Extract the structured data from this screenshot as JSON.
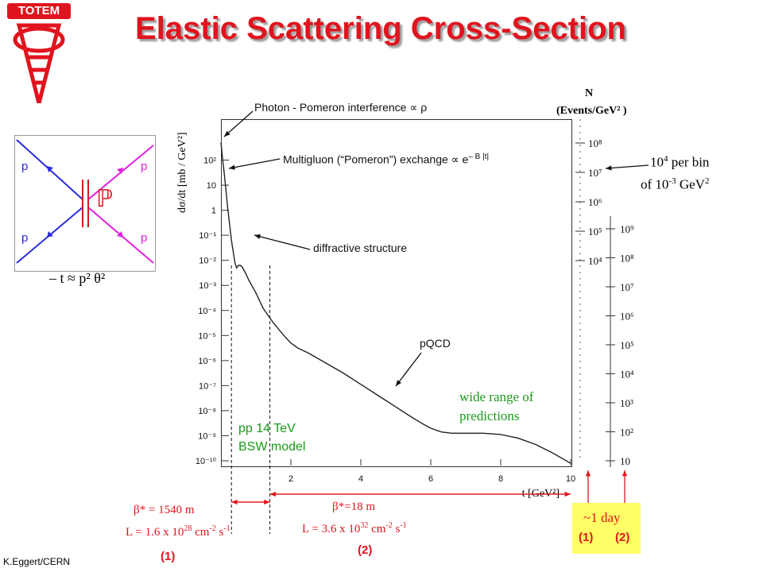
{
  "header": {
    "title": "Elastic Scattering Cross-Section",
    "logo_text": "TOTEM"
  },
  "footer": {
    "credit": "K.Eggert/CERN"
  },
  "feynman": {
    "labels": [
      "p",
      "p",
      "p",
      "p"
    ],
    "exchange": "ℙ",
    "relation": "– t ≈ p² θ²"
  },
  "annotations": {
    "photon": "Photon - Pomeron interference ∝ ρ",
    "multigluon": "Multigluon (“Pomeron”) exchange ∝ e",
    "multigluon_sup": "– B |t|",
    "diffractive": "diffractive structure",
    "pqcd": "pQCD",
    "wide_range_1": "wide range of",
    "wide_range_2": "predictions",
    "model_1": "pp 14 TeV",
    "model_2": "BSW model",
    "per_bin_1": "10",
    "per_bin_1_sup": "4",
    "per_bin_1_rest": " per bin",
    "per_bin_2": "of 10",
    "per_bin_2_sup": "-3",
    "per_bin_2_rest": " GeV",
    "per_bin_2_sup2": "2"
  },
  "optics": {
    "beta1": "β* = 1540 m",
    "lumi1": "L = 1.6 x 10",
    "lumi1_exp": "28",
    "lumi1_units": " cm",
    "lumi1_u1": "-2",
    "lumi1_s": " s",
    "lumi1_u2": "-1",
    "beta2": "β*=18 m",
    "lumi2": "L = 3.6 x 10",
    "lumi2_exp": "32",
    "lumi2_units": " cm",
    "lumi2_u1": "-2",
    "lumi2_s": " s",
    "lumi2_u2": "-1",
    "label1": "(1)",
    "label2": "(2)"
  },
  "day_box": {
    "line1": "~1 day",
    "label1": "(1)",
    "label2": "(2)"
  },
  "colors": {
    "title": "#e0141e",
    "green": "#1a9a1a",
    "red": "#e0141e",
    "blue": "#2b2bdc",
    "magenta": "#e020e0",
    "yellow": "#ffff66"
  },
  "chart_data": {
    "type": "line",
    "title": "Elastic Scattering Cross-Section",
    "xlabel": "-t [GeV²]",
    "ylabel": "dσ/dt [mb / GeV²]",
    "right_axis_label_1": "N",
    "right_axis_label_2": "(Events/GeV² )",
    "xlim": [
      0,
      10
    ],
    "ylim_log10": [
      -10,
      3
    ],
    "x_ticks": [
      "2",
      "4",
      "6",
      "8",
      "10"
    ],
    "y_ticks": [
      "10²",
      "10",
      "1",
      "10⁻¹",
      "10⁻²",
      "10⁻³",
      "10⁻⁴",
      "10⁻⁵",
      "10⁻⁶",
      "10⁻⁷",
      "10⁻⁸",
      "10⁻⁹",
      "10⁻¹⁰"
    ],
    "right_ticks_1": [
      "10⁸",
      "10⁷",
      "10⁶",
      "10⁵",
      "10⁴"
    ],
    "right_ticks_2": [
      "10⁹",
      "10⁸",
      "10⁷",
      "10⁶",
      "10⁵",
      "10⁴",
      "10³",
      "10²",
      "10"
    ],
    "series": [
      {
        "x": [
          0.0,
          0.05,
          0.1,
          0.2,
          0.3,
          0.4,
          0.45,
          0.5,
          0.55,
          0.6,
          0.7,
          0.8,
          1.0,
          1.2,
          1.5,
          1.8,
          2.0,
          2.2,
          2.5,
          3.0,
          3.5,
          4.0,
          4.5,
          5.0,
          5.5,
          5.8,
          6.0,
          6.3,
          6.6,
          7.0,
          7.5,
          8.0,
          8.5,
          9.0,
          9.5,
          10.0
        ],
        "log10_y": [
          2.7,
          2.0,
          1.4,
          0.0,
          -1.2,
          -2.1,
          -2.3,
          -2.2,
          -2.2,
          -2.25,
          -2.5,
          -2.8,
          -3.3,
          -3.9,
          -4.5,
          -5.0,
          -5.3,
          -5.5,
          -5.7,
          -6.1,
          -6.5,
          -6.95,
          -7.4,
          -7.85,
          -8.3,
          -8.55,
          -8.7,
          -8.85,
          -8.9,
          -8.9,
          -8.9,
          -8.95,
          -9.1,
          -9.35,
          -9.7,
          -10.1
        ]
      }
    ],
    "acceptance_ranges": [
      {
        "label": "(1)",
        "x": [
          0.3,
          1.4
        ]
      },
      {
        "label": "(2)",
        "x": [
          1.4,
          10.0
        ]
      }
    ]
  }
}
